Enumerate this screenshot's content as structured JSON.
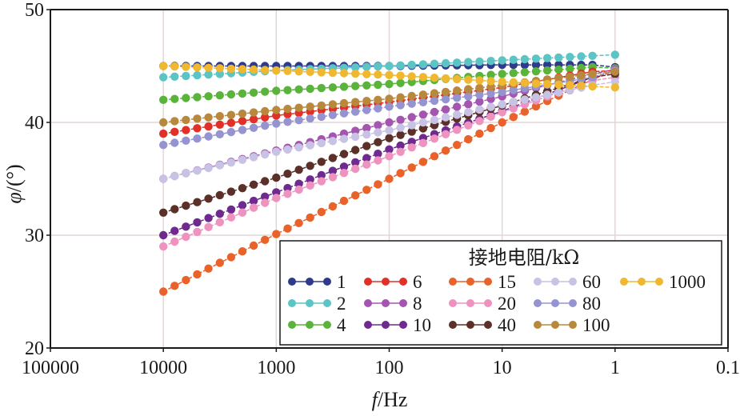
{
  "chart_data": {
    "type": "line",
    "title": "",
    "xlabel_italic": "f",
    "xlabel_rest": "/Hz",
    "ylabel_italic": "φ",
    "ylabel_rest": "/(°)",
    "x_scale": "log",
    "x_reversed": true,
    "xlim": [
      100000,
      0.1
    ],
    "ylim": [
      20,
      50
    ],
    "x_ticks": [
      100000,
      10000,
      1000,
      100,
      10,
      1,
      0.1
    ],
    "x_tick_labels": [
      "100000",
      "10000",
      "1000",
      "100",
      "10",
      "1",
      "0.1"
    ],
    "y_ticks": [
      20,
      30,
      40,
      50
    ],
    "y_tick_labels": [
      "20",
      "30",
      "40",
      "50"
    ],
    "grid": true,
    "marker": "circle",
    "x_points_note": "log10(f) from 4.0 down to 0.2 in steps of 0.1, plus f = 1",
    "legend": {
      "title": "接地电阻/kΩ",
      "placement": "bottom-right",
      "columns": 5
    },
    "series": [
      {
        "name": "1",
        "color": "#2e3a8c",
        "anchors_log_f": [
          4,
          3,
          2,
          1,
          0.2
        ],
        "anchor_values": [
          45.0,
          45.0,
          45.0,
          45.1,
          45.1
        ],
        "value_at_f1": 44.9
      },
      {
        "name": "2",
        "color": "#5cc4c4",
        "anchors_log_f": [
          4,
          3,
          2,
          1,
          0.2
        ],
        "anchor_values": [
          44.0,
          44.6,
          45.0,
          45.5,
          45.9
        ],
        "value_at_f1": 46.0
      },
      {
        "name": "4",
        "color": "#5ab43c",
        "anchors_log_f": [
          4,
          3,
          2,
          1,
          0.2
        ],
        "anchor_values": [
          42.0,
          42.8,
          43.4,
          44.3,
          44.9
        ],
        "value_at_f1": 44.8
      },
      {
        "name": "6",
        "color": "#e03028",
        "anchors_log_f": [
          4,
          3,
          2,
          1,
          0.2
        ],
        "anchor_values": [
          39.0,
          40.6,
          41.8,
          43.1,
          44.5
        ],
        "value_at_f1": 44.6
      },
      {
        "name": "8",
        "color": "#a455b0",
        "anchors_log_f": [
          4,
          3,
          2,
          1,
          0.2
        ],
        "anchor_values": [
          35.0,
          37.5,
          40.0,
          42.3,
          44.3
        ],
        "value_at_f1": 44.7
      },
      {
        "name": "10",
        "color": "#6e2a8e",
        "anchors_log_f": [
          4,
          3,
          2,
          1,
          0.2
        ],
        "anchor_values": [
          30.0,
          33.8,
          37.6,
          41.0,
          44.0
        ],
        "value_at_f1": 44.5
      },
      {
        "name": "15",
        "color": "#e8622a",
        "anchors_log_f": [
          4,
          3,
          2,
          1,
          0.2
        ],
        "anchor_values": [
          25.0,
          30.1,
          35.0,
          40.0,
          43.8
        ],
        "value_at_f1": 44.6
      },
      {
        "name": "20",
        "color": "#ee92c0",
        "anchors_log_f": [
          4,
          3,
          2,
          1,
          0.2
        ],
        "anchor_values": [
          29.0,
          33.3,
          37.0,
          40.9,
          43.7
        ],
        "value_at_f1": 44.0
      },
      {
        "name": "40",
        "color": "#5a3028",
        "anchors_log_f": [
          4,
          3,
          2,
          1,
          0.2
        ],
        "anchor_values": [
          32.0,
          35.1,
          38.6,
          41.5,
          44.0
        ],
        "value_at_f1": 44.3
      },
      {
        "name": "60",
        "color": "#c8c2e4",
        "anchors_log_f": [
          4,
          3,
          2,
          1,
          0.2
        ],
        "anchor_values": [
          35.0,
          37.4,
          39.3,
          41.6,
          43.3
        ],
        "value_at_f1": 43.6
      },
      {
        "name": "80",
        "color": "#9694d0",
        "anchors_log_f": [
          4,
          3,
          2,
          1,
          0.2
        ],
        "anchor_values": [
          38.0,
          39.9,
          41.4,
          42.7,
          44.0
        ],
        "value_at_f1": 44.6
      },
      {
        "name": "100",
        "color": "#b8883c",
        "anchors_log_f": [
          4,
          3,
          2,
          1,
          0.2
        ],
        "anchor_values": [
          40.0,
          41.1,
          42.1,
          43.3,
          44.3
        ],
        "value_at_f1": 44.5
      },
      {
        "name": "1000",
        "color": "#f0b830",
        "anchors_log_f": [
          4,
          3,
          2,
          1,
          0.2
        ],
        "anchor_values": [
          45.0,
          44.6,
          44.2,
          43.6,
          43.2
        ],
        "value_at_f1": 43.1
      }
    ]
  }
}
